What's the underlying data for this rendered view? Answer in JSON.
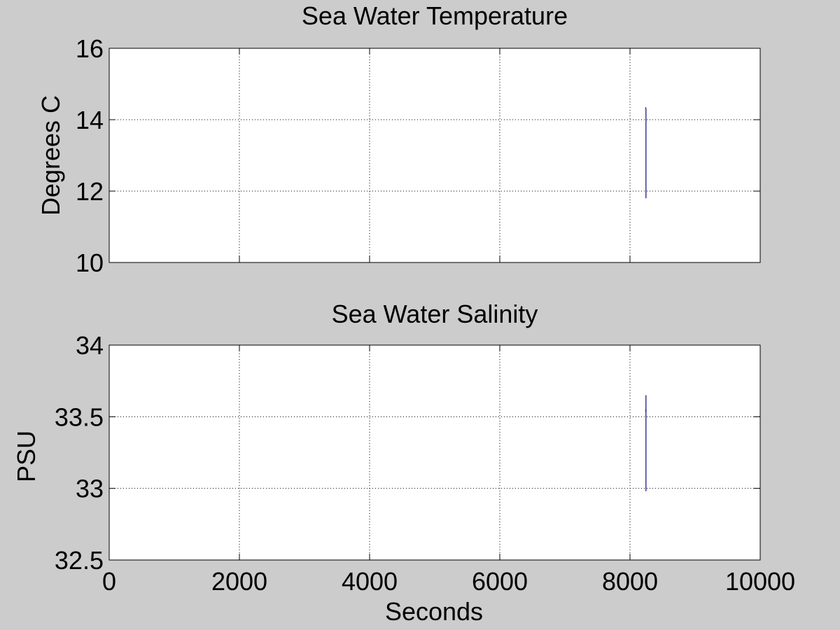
{
  "figure": {
    "background": "#cccccc",
    "line_color": "#1a1a8c"
  },
  "chart_data": [
    {
      "type": "line",
      "title": "Sea Water Temperature",
      "xlabel": "",
      "ylabel": "Degrees C",
      "xlim": [
        0,
        10000
      ],
      "ylim": [
        10,
        16
      ],
      "xticks": [
        0,
        2000,
        4000,
        6000,
        8000,
        10000
      ],
      "xtick_labels_visible": false,
      "yticks": [
        10,
        12,
        14,
        16
      ],
      "ytick_labels": [
        "10",
        "12",
        "14",
        "16"
      ],
      "grid": true,
      "series": [
        {
          "name": "temperature",
          "x": [
            8240,
            8245,
            8245,
            8245
          ],
          "y": [
            14.35,
            14.3,
            14.0,
            11.8
          ]
        }
      ]
    },
    {
      "type": "line",
      "title": "Sea Water Salinity",
      "xlabel": "Seconds",
      "ylabel": "PSU",
      "xlim": [
        0,
        10000
      ],
      "ylim": [
        32.5,
        34
      ],
      "xticks": [
        0,
        2000,
        4000,
        6000,
        8000,
        10000
      ],
      "xtick_labels": [
        "0",
        "2000",
        "4000",
        "6000",
        "8000",
        "10000"
      ],
      "yticks": [
        32.5,
        33,
        33.5,
        34
      ],
      "ytick_labels": [
        "32.5",
        "33",
        "33.5",
        "34"
      ],
      "grid": true,
      "series": [
        {
          "name": "salinity",
          "x": [
            8240,
            8245,
            8245,
            8245
          ],
          "y": [
            33.55,
            33.53,
            33.65,
            32.98
          ]
        }
      ]
    }
  ]
}
